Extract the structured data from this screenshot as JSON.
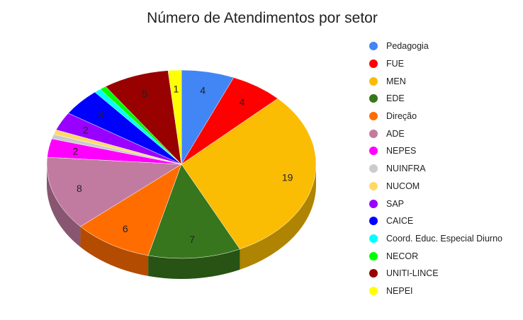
{
  "chart_data": {
    "type": "pie",
    "title": "Número de Atendimentos por setor",
    "legend_position": "right",
    "three_d": true,
    "slices": [
      {
        "label": "Pedagogia",
        "value": 4,
        "color": "#4285f4"
      },
      {
        "label": "FUE",
        "value": 4,
        "color": "#ff0000"
      },
      {
        "label": "MEN",
        "value": 19,
        "color": "#fbbc04"
      },
      {
        "label": "EDE",
        "value": 7,
        "color": "#38761d"
      },
      {
        "label": "Direção",
        "value": 6,
        "color": "#ff6d01"
      },
      {
        "label": "ADE",
        "value": 8,
        "color": "#c27ba0"
      },
      {
        "label": "NEPES",
        "value": 2,
        "color": "#ff00ff"
      },
      {
        "label": "NUINFRA",
        "value": 0.5,
        "color": "#cccccc"
      },
      {
        "label": "NUCOM",
        "value": 0.5,
        "color": "#ffd966"
      },
      {
        "label": "SAP",
        "value": 2,
        "color": "#9900ff"
      },
      {
        "label": "CAICE",
        "value": 3,
        "color": "#0000ff"
      },
      {
        "label": "Coord. Educ. Especial Diurno",
        "value": 0.5,
        "color": "#00ffff"
      },
      {
        "label": "NECOR",
        "value": 0.5,
        "color": "#00ff00"
      },
      {
        "label": "UNITI-LINCE",
        "value": 5,
        "color": "#990000"
      },
      {
        "label": "NEPEI",
        "value": 1,
        "color": "#ffff00"
      }
    ]
  }
}
